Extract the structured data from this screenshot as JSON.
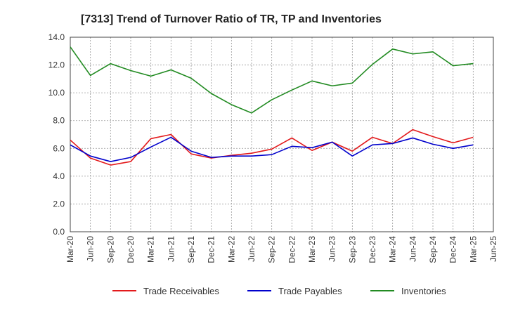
{
  "chart_data": {
    "type": "line",
    "title": "[7313]  Trend of Turnover Ratio of TR, TP and Inventories",
    "xlabel": "",
    "ylabel": "",
    "ylim": [
      0,
      14
    ],
    "y_ticks": [
      "0.0",
      "2.0",
      "4.0",
      "6.0",
      "8.0",
      "10.0",
      "12.0",
      "14.0"
    ],
    "x_tick_labels": [
      "Mar-20",
      "Jun-20",
      "Sep-20",
      "Dec-20",
      "Mar-21",
      "Jun-21",
      "Sep-21",
      "Dec-21",
      "Mar-22",
      "Jun-22",
      "Sep-22",
      "Dec-22",
      "Mar-23",
      "Jun-23",
      "Sep-23",
      "Dec-23",
      "Mar-24",
      "Jun-24",
      "Sep-24",
      "Dec-24",
      "Mar-25",
      "Jun-25"
    ],
    "categories": [
      "Mar-20",
      "Jun-20",
      "Sep-20",
      "Dec-20",
      "Mar-21",
      "Jun-21",
      "Sep-21",
      "Dec-21",
      "Mar-22",
      "Jun-22",
      "Sep-22",
      "Dec-22",
      "Mar-23",
      "Jun-23",
      "Sep-23",
      "Dec-23",
      "Mar-24",
      "Jun-24",
      "Sep-24",
      "Dec-24",
      "Mar-25"
    ],
    "grid": true,
    "legend_position": "bottom",
    "series": [
      {
        "name": "Trade Receivables",
        "color": "#e31a1c",
        "values": [
          6.6,
          5.3,
          4.8,
          5.05,
          6.7,
          7.0,
          5.6,
          5.3,
          5.5,
          5.65,
          5.95,
          6.75,
          5.85,
          6.45,
          5.8,
          6.8,
          6.35,
          7.35,
          6.85,
          6.4,
          6.8
        ]
      },
      {
        "name": "Trade Payables",
        "color": "#0000cc",
        "values": [
          6.25,
          5.45,
          5.05,
          5.35,
          6.1,
          6.8,
          5.8,
          5.35,
          5.45,
          5.45,
          5.55,
          6.15,
          6.05,
          6.45,
          5.45,
          6.25,
          6.35,
          6.75,
          6.3,
          6.0,
          6.25
        ]
      },
      {
        "name": "Inventories",
        "color": "#228b22",
        "values": [
          13.3,
          11.25,
          12.1,
          11.6,
          11.2,
          11.65,
          11.05,
          9.95,
          9.15,
          8.55,
          9.5,
          10.2,
          10.85,
          10.5,
          10.7,
          12.05,
          13.15,
          12.8,
          12.95,
          11.95,
          12.1
        ]
      }
    ]
  }
}
